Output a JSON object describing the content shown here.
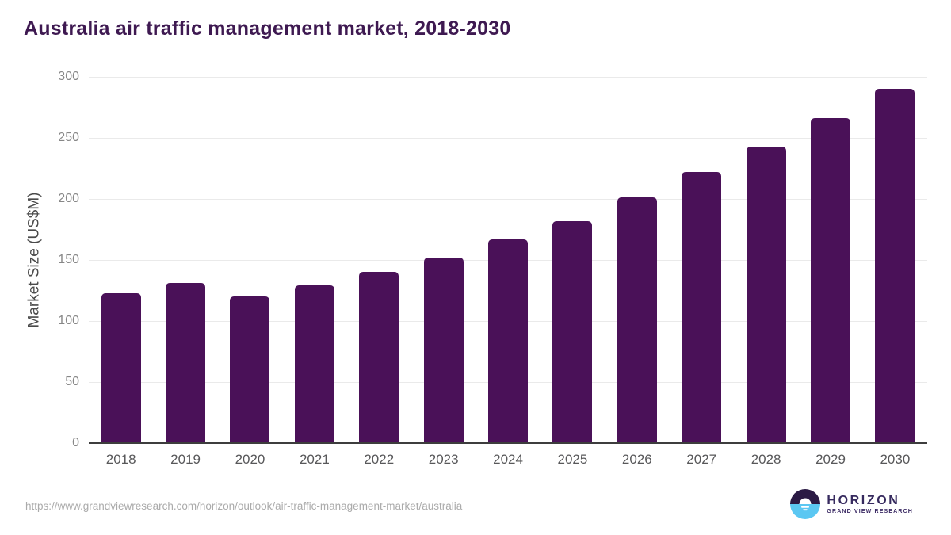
{
  "chart_data": {
    "type": "bar",
    "title": "Australia air traffic management market, 2018-2030",
    "categories": [
      "2018",
      "2019",
      "2020",
      "2021",
      "2022",
      "2023",
      "2024",
      "2025",
      "2026",
      "2027",
      "2028",
      "2029",
      "2030"
    ],
    "values": [
      123,
      131,
      120,
      129,
      140,
      152,
      167,
      182,
      201,
      222,
      243,
      266,
      290
    ],
    "xlabel": "",
    "ylabel": "Market Size (US$M)",
    "ylim": [
      0,
      300
    ],
    "y_ticks": [
      0,
      50,
      100,
      150,
      200,
      250,
      300
    ],
    "bar_color": "#4a1158",
    "grid": "horizontal-only",
    "legend_position": "none"
  },
  "footer": {
    "source_url": "https://www.grandviewresearch.com/horizon/outlook/air-traffic-management-market/australia",
    "logo": {
      "wordmark": "HORIZON",
      "subtitle": "GRAND VIEW RESEARCH"
    }
  },
  "colors": {
    "title_text": "#3e1951",
    "bar_fill": "#4a1158",
    "gridline": "#eaeaea",
    "axis_line": "#3d3d3d",
    "tick_label": "#878787",
    "year_label": "#58585a",
    "url_text": "#ababab",
    "logo_purple": "#362a5e",
    "logo_icon_dark": "#2b1a44",
    "logo_icon_blue": "#5bc7f2"
  }
}
